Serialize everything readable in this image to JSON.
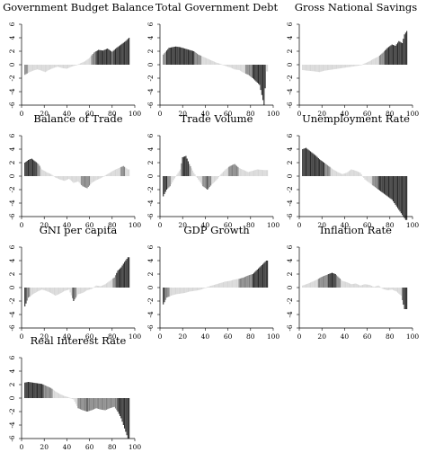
{
  "chart_data": [
    {
      "type": "bar",
      "title": "Government Budget Balance",
      "xlim": [
        0,
        100
      ],
      "ylim": [
        -6,
        6
      ],
      "xticks": [
        "0",
        "20",
        "40",
        "60",
        "80",
        "100"
      ],
      "yticks": [
        "-6",
        "-4",
        "-2",
        "0",
        "2",
        "4",
        "6"
      ],
      "segments": [
        [
          3,
          -1.5
        ],
        [
          6,
          -1.2
        ],
        [
          10,
          -0.9
        ],
        [
          14,
          -0.7
        ],
        [
          18,
          -0.9
        ],
        [
          21,
          -1.1
        ],
        [
          24,
          -0.8
        ],
        [
          28,
          -0.5
        ],
        [
          32,
          -0.3
        ],
        [
          36,
          -0.5
        ],
        [
          40,
          -0.6
        ],
        [
          44,
          -0.3
        ],
        [
          48,
          -0.1
        ],
        [
          52,
          0.2
        ],
        [
          56,
          0.5
        ],
        [
          60,
          1.0
        ],
        [
          64,
          1.8
        ],
        [
          68,
          2.2
        ],
        [
          72,
          2.1
        ],
        [
          76,
          2.4
        ],
        [
          80,
          1.9
        ],
        [
          84,
          2.5
        ],
        [
          88,
          3.0
        ],
        [
          92,
          3.5
        ],
        [
          95,
          4.0
        ]
      ]
    },
    {
      "type": "bar",
      "title": "Total Government Debt",
      "xlim": [
        0,
        100
      ],
      "ylim": [
        -6,
        6
      ],
      "xticks": [
        "0",
        "20",
        "40",
        "60",
        "80",
        "100"
      ],
      "yticks": [
        "-6",
        "-4",
        "-2",
        "0",
        "2",
        "4",
        "6"
      ],
      "segments": [
        [
          3,
          1.5
        ],
        [
          8,
          2.5
        ],
        [
          14,
          2.7
        ],
        [
          18,
          2.6
        ],
        [
          22,
          2.4
        ],
        [
          26,
          2.2
        ],
        [
          30,
          2.0
        ],
        [
          34,
          1.5
        ],
        [
          38,
          1.2
        ],
        [
          42,
          0.9
        ],
        [
          46,
          0.6
        ],
        [
          50,
          0.3
        ],
        [
          54,
          0.1
        ],
        [
          58,
          -0.2
        ],
        [
          62,
          -0.4
        ],
        [
          66,
          -0.7
        ],
        [
          70,
          -0.8
        ],
        [
          74,
          -1.2
        ],
        [
          78,
          -1.5
        ],
        [
          82,
          -2.0
        ],
        [
          85,
          -2.5
        ],
        [
          88,
          -3.0
        ],
        [
          90,
          -4.5
        ],
        [
          92,
          -6.0
        ],
        [
          94,
          -1.0
        ]
      ]
    },
    {
      "type": "bar",
      "title": "Gross National Savings",
      "xlim": [
        0,
        100
      ],
      "ylim": [
        -6,
        6
      ],
      "xticks": [
        "0",
        "20",
        "40",
        "60",
        "80",
        "100"
      ],
      "yticks": [
        "-6",
        "-4",
        "-2",
        "0",
        "2",
        "4",
        "6"
      ],
      "segments": [
        [
          3,
          -0.8
        ],
        [
          8,
          -0.9
        ],
        [
          14,
          -1.0
        ],
        [
          18,
          -1.1
        ],
        [
          22,
          -0.9
        ],
        [
          26,
          -0.8
        ],
        [
          30,
          -0.7
        ],
        [
          34,
          -0.6
        ],
        [
          38,
          -0.5
        ],
        [
          42,
          -0.4
        ],
        [
          46,
          -0.3
        ],
        [
          50,
          -0.2
        ],
        [
          54,
          -0.1
        ],
        [
          58,
          0.2
        ],
        [
          62,
          0.5
        ],
        [
          66,
          0.9
        ],
        [
          70,
          1.2
        ],
        [
          74,
          1.8
        ],
        [
          78,
          2.5
        ],
        [
          82,
          3.0
        ],
        [
          85,
          2.8
        ],
        [
          88,
          3.5
        ],
        [
          91,
          3.2
        ],
        [
          93,
          4.5
        ],
        [
          95,
          5.0
        ]
      ]
    },
    {
      "type": "bar",
      "title": "Balance of Trade",
      "xlim": [
        0,
        100
      ],
      "ylim": [
        -6,
        6
      ],
      "xticks": [
        "0",
        "20",
        "40",
        "60",
        "80",
        "100"
      ],
      "yticks": [
        "-6",
        "-4",
        "-2",
        "0",
        "2",
        "4",
        "6"
      ],
      "segments": [
        [
          3,
          2.0
        ],
        [
          6,
          2.4
        ],
        [
          9,
          2.6
        ],
        [
          12,
          2.2
        ],
        [
          15,
          1.8
        ],
        [
          18,
          1.0
        ],
        [
          22,
          0.6
        ],
        [
          26,
          0.3
        ],
        [
          30,
          -0.2
        ],
        [
          34,
          -0.5
        ],
        [
          38,
          -0.7
        ],
        [
          42,
          -0.4
        ],
        [
          46,
          -1.0
        ],
        [
          50,
          -0.8
        ],
        [
          54,
          -1.5
        ],
        [
          58,
          -1.8
        ],
        [
          62,
          -1.0
        ],
        [
          66,
          -0.6
        ],
        [
          70,
          -0.3
        ],
        [
          74,
          0.1
        ],
        [
          78,
          0.5
        ],
        [
          82,
          0.9
        ],
        [
          86,
          1.2
        ],
        [
          90,
          1.5
        ],
        [
          94,
          1.0
        ]
      ]
    },
    {
      "type": "bar",
      "title": "Trade Volume",
      "xlim": [
        0,
        100
      ],
      "ylim": [
        -6,
        6
      ],
      "xticks": [
        "0",
        "20",
        "40",
        "60",
        "80",
        "100"
      ],
      "yticks": [
        "-6",
        "-4",
        "-2",
        "0",
        "2",
        "4",
        "6"
      ],
      "segments": [
        [
          3,
          -3.0
        ],
        [
          6,
          -2.0
        ],
        [
          9,
          -1.5
        ],
        [
          12,
          -0.6
        ],
        [
          15,
          0.2
        ],
        [
          18,
          1.0
        ],
        [
          20,
          2.8
        ],
        [
          23,
          3.0
        ],
        [
          26,
          1.8
        ],
        [
          30,
          0.5
        ],
        [
          34,
          -0.5
        ],
        [
          38,
          -1.5
        ],
        [
          42,
          -2.0
        ],
        [
          46,
          -1.2
        ],
        [
          50,
          -0.6
        ],
        [
          54,
          0.3
        ],
        [
          58,
          1.0
        ],
        [
          62,
          1.5
        ],
        [
          66,
          1.8
        ],
        [
          70,
          1.2
        ],
        [
          74,
          0.9
        ],
        [
          78,
          0.6
        ],
        [
          82,
          0.8
        ],
        [
          86,
          1.0
        ],
        [
          92,
          0.9
        ]
      ]
    },
    {
      "type": "bar",
      "title": "Unemployment Rate",
      "xlim": [
        0,
        100
      ],
      "ylim": [
        -6,
        6
      ],
      "xticks": [
        "0",
        "20",
        "40",
        "60",
        "80",
        "100"
      ],
      "yticks": [
        "-6",
        "-4",
        "-2",
        "0",
        "2",
        "4",
        "6"
      ],
      "segments": [
        [
          3,
          4.0
        ],
        [
          6,
          4.2
        ],
        [
          9,
          3.8
        ],
        [
          12,
          3.4
        ],
        [
          15,
          3.0
        ],
        [
          18,
          2.5
        ],
        [
          22,
          2.0
        ],
        [
          26,
          1.5
        ],
        [
          30,
          1.0
        ],
        [
          34,
          0.6
        ],
        [
          38,
          0.3
        ],
        [
          42,
          0.5
        ],
        [
          46,
          1.0
        ],
        [
          50,
          0.8
        ],
        [
          54,
          0.5
        ],
        [
          58,
          -0.5
        ],
        [
          62,
          -1.0
        ],
        [
          66,
          -1.5
        ],
        [
          70,
          -2.0
        ],
        [
          74,
          -2.5
        ],
        [
          78,
          -3.0
        ],
        [
          82,
          -3.5
        ],
        [
          86,
          -4.5
        ],
        [
          90,
          -5.5
        ],
        [
          94,
          -6.5
        ]
      ]
    },
    {
      "type": "bar",
      "title": "GNI per capita",
      "xlim": [
        0,
        100
      ],
      "ylim": [
        -6,
        6
      ],
      "xticks": [
        "0",
        "20",
        "40",
        "60",
        "80",
        "100"
      ],
      "yticks": [
        "-6",
        "-4",
        "-2",
        "0",
        "2",
        "4",
        "6"
      ],
      "segments": [
        [
          3,
          -2.8
        ],
        [
          6,
          -1.5
        ],
        [
          10,
          -1.0
        ],
        [
          14,
          -0.6
        ],
        [
          18,
          -0.3
        ],
        [
          22,
          -0.5
        ],
        [
          26,
          -0.8
        ],
        [
          30,
          -1.2
        ],
        [
          34,
          -0.9
        ],
        [
          38,
          -0.5
        ],
        [
          42,
          -0.3
        ],
        [
          46,
          -2.0
        ],
        [
          50,
          -1.0
        ],
        [
          54,
          -0.8
        ],
        [
          58,
          -0.4
        ],
        [
          62,
          -0.2
        ],
        [
          66,
          0.3
        ],
        [
          70,
          0.2
        ],
        [
          74,
          0.5
        ],
        [
          78,
          1.0
        ],
        [
          82,
          1.5
        ],
        [
          85,
          2.5
        ],
        [
          88,
          3.0
        ],
        [
          91,
          3.8
        ],
        [
          94,
          4.5
        ]
      ]
    },
    {
      "type": "bar",
      "title": "GDP Growth",
      "xlim": [
        0,
        100
      ],
      "ylim": [
        -6,
        6
      ],
      "xticks": [
        "0",
        "20",
        "40",
        "60",
        "80",
        "100"
      ],
      "yticks": [
        "-6",
        "-4",
        "-2",
        "0",
        "2",
        "4",
        "6"
      ],
      "segments": [
        [
          3,
          -2.5
        ],
        [
          6,
          -1.5
        ],
        [
          10,
          -1.2
        ],
        [
          14,
          -1.0
        ],
        [
          18,
          -0.9
        ],
        [
          22,
          -0.8
        ],
        [
          26,
          -0.6
        ],
        [
          30,
          -0.5
        ],
        [
          34,
          -0.4
        ],
        [
          38,
          -0.2
        ],
        [
          42,
          0.1
        ],
        [
          46,
          0.3
        ],
        [
          50,
          0.5
        ],
        [
          54,
          0.7
        ],
        [
          58,
          0.9
        ],
        [
          62,
          1.0
        ],
        [
          66,
          1.2
        ],
        [
          70,
          1.3
        ],
        [
          74,
          1.5
        ],
        [
          78,
          1.8
        ],
        [
          82,
          2.0
        ],
        [
          85,
          2.5
        ],
        [
          88,
          3.0
        ],
        [
          91,
          3.5
        ],
        [
          94,
          4.0
        ]
      ]
    },
    {
      "type": "bar",
      "title": "Inflation Rate",
      "xlim": [
        0,
        100
      ],
      "ylim": [
        -6,
        6
      ],
      "xticks": [
        "0",
        "20",
        "40",
        "60",
        "80",
        "100"
      ],
      "yticks": [
        "-6",
        "-4",
        "-2",
        "0",
        "2",
        "4",
        "6"
      ],
      "segments": [
        [
          3,
          0.3
        ],
        [
          8,
          0.6
        ],
        [
          12,
          0.9
        ],
        [
          16,
          1.2
        ],
        [
          20,
          1.6
        ],
        [
          23,
          1.8
        ],
        [
          26,
          2.0
        ],
        [
          29,
          2.2
        ],
        [
          32,
          2.0
        ],
        [
          35,
          1.5
        ],
        [
          38,
          1.0
        ],
        [
          42,
          0.8
        ],
        [
          46,
          0.5
        ],
        [
          50,
          0.6
        ],
        [
          54,
          0.3
        ],
        [
          58,
          0.5
        ],
        [
          62,
          0.4
        ],
        [
          66,
          0.1
        ],
        [
          70,
          0.3
        ],
        [
          74,
          -0.2
        ],
        [
          78,
          -0.4
        ],
        [
          82,
          -0.3
        ],
        [
          86,
          -0.6
        ],
        [
          90,
          -1.2
        ],
        [
          93,
          -3.2
        ]
      ]
    },
    {
      "type": "bar",
      "title": "Real Interest Rate",
      "xlim": [
        0,
        100
      ],
      "ylim": [
        -6,
        6
      ],
      "xticks": [
        "0",
        "20",
        "40",
        "60",
        "80",
        "100"
      ],
      "yticks": [
        "-6",
        "-4",
        "-2",
        "0",
        "2",
        "4",
        "6"
      ],
      "segments": [
        [
          3,
          2.3
        ],
        [
          6,
          2.4
        ],
        [
          10,
          2.3
        ],
        [
          14,
          2.2
        ],
        [
          18,
          2.1
        ],
        [
          22,
          1.8
        ],
        [
          26,
          1.5
        ],
        [
          30,
          1.0
        ],
        [
          34,
          0.6
        ],
        [
          38,
          0.3
        ],
        [
          42,
          0.1
        ],
        [
          46,
          -0.2
        ],
        [
          50,
          -1.5
        ],
        [
          54,
          -1.8
        ],
        [
          58,
          -2.0
        ],
        [
          62,
          -1.8
        ],
        [
          66,
          -1.5
        ],
        [
          70,
          -1.7
        ],
        [
          74,
          -1.8
        ],
        [
          78,
          -1.5
        ],
        [
          82,
          -1.3
        ],
        [
          85,
          -2.0
        ],
        [
          88,
          -3.0
        ],
        [
          91,
          -4.5
        ],
        [
          94,
          -6.0
        ]
      ]
    }
  ]
}
